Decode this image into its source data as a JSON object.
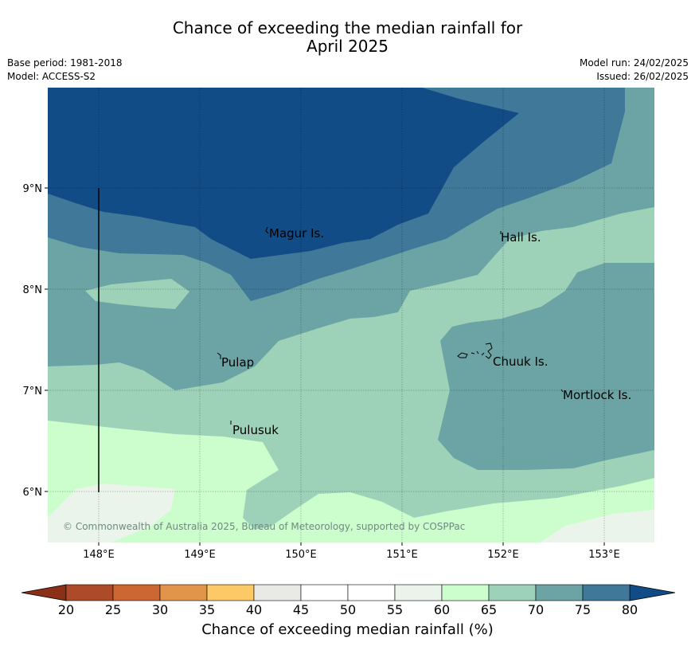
{
  "title": {
    "line1": "Chance of exceeding the median rainfall for",
    "line2": "April 2025"
  },
  "meta": {
    "base_period": "Base period: 1981-2018",
    "model": "Model: ACCESS-S2",
    "model_run": "Model run: 24/02/2025",
    "issued": "Issued: 26/02/2025"
  },
  "map": {
    "lon_ticks": [
      "148°E",
      "149°E",
      "150°E",
      "151°E",
      "152°E",
      "153°E"
    ],
    "lat_ticks": [
      "9°N",
      "8°N",
      "7°N",
      "6°N"
    ],
    "places": [
      "Magur Is.",
      "Hall Is.",
      "Pulap",
      "Chuuk Is.",
      "Mortlock Is.",
      "Pulusuk"
    ],
    "copyright": "© Commonwealth of Australia 2025, Bureau of Meteorology, supported by COSPPac"
  },
  "colorbar": {
    "title": "Chance of exceeding median rainfall (%)",
    "ticks": [
      "20",
      "25",
      "30",
      "35",
      "40",
      "45",
      "50",
      "55",
      "60",
      "65",
      "70",
      "75",
      "80"
    ],
    "colors": [
      "#ad4a2a",
      "#cc6734",
      "#e0954a",
      "#fdc966",
      "#e9e9e6",
      "#ffffff",
      "#ffffff",
      "#ebf4ea",
      "#ccfdcc",
      "#9dd2b9",
      "#6ca4a5",
      "#3f7898"
    ],
    "under_color": "#8b2f17",
    "over_color": "#124c87"
  },
  "palette": {
    "c55_60": "#ebf4ea",
    "c60_65": "#ccfdcc",
    "c65_70": "#9dd2b9",
    "c70_75": "#6ca4a5",
    "c75_80": "#3f7898",
    "c80_plus": "#124c87"
  }
}
